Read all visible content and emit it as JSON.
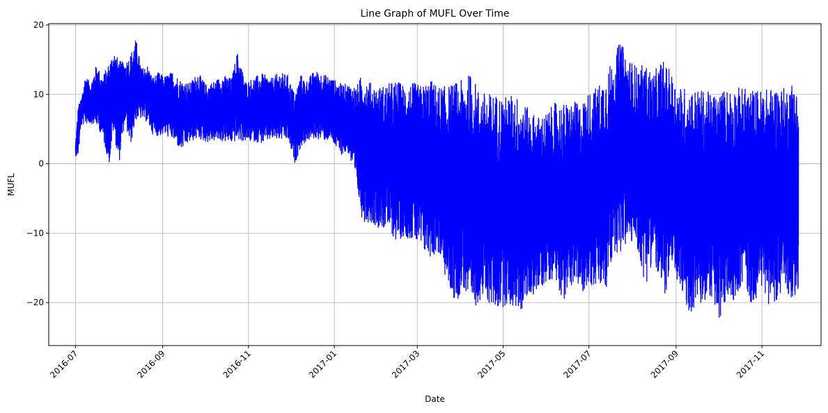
{
  "chart_data": {
    "type": "line",
    "title": "Line Graph of MUFL Over Time",
    "xlabel": "Date",
    "ylabel": "MUFL",
    "grid": true,
    "legend": "none",
    "xlim": [
      "2016-06-12",
      "2017-12-13"
    ],
    "ylim": [
      -26.2,
      20.2
    ],
    "x_ticks": [
      "2016-07",
      "2016-09",
      "2016-11",
      "2017-01",
      "2017-03",
      "2017-05",
      "2017-07",
      "2017-09",
      "2017-11"
    ],
    "y_ticks": [
      20,
      10,
      0,
      -10,
      -20
    ],
    "series": [
      {
        "color": "#0000ff",
        "x_start": "2016-07-01",
        "x_end": "2017-11-27",
        "envelope_note_free": true,
        "x": [
          "2016-07-01",
          "2016-07-03",
          "2016-07-05",
          "2016-07-08",
          "2016-07-12",
          "2016-07-16",
          "2016-07-20",
          "2016-07-25",
          "2016-07-28",
          "2016-08-01",
          "2016-08-05",
          "2016-08-09",
          "2016-08-13",
          "2016-08-17",
          "2016-08-21",
          "2016-08-25",
          "2016-08-29",
          "2016-09-02",
          "2016-09-08",
          "2016-09-14",
          "2016-09-20",
          "2016-09-26",
          "2016-10-02",
          "2016-10-08",
          "2016-10-14",
          "2016-10-20",
          "2016-10-24",
          "2016-10-30",
          "2016-11-05",
          "2016-11-11",
          "2016-11-17",
          "2016-11-23",
          "2016-11-29",
          "2016-12-04",
          "2016-12-08",
          "2016-12-12",
          "2016-12-18",
          "2016-12-24",
          "2016-12-30",
          "2017-01-05",
          "2017-01-11",
          "2017-01-17",
          "2017-01-21",
          "2017-01-27",
          "2017-02-02",
          "2017-02-08",
          "2017-02-14",
          "2017-02-20",
          "2017-02-26",
          "2017-03-04",
          "2017-03-10",
          "2017-03-16",
          "2017-03-22",
          "2017-03-28",
          "2017-04-03",
          "2017-04-08",
          "2017-04-14",
          "2017-04-20",
          "2017-04-26",
          "2017-05-02",
          "2017-05-08",
          "2017-05-14",
          "2017-05-20",
          "2017-05-26",
          "2017-06-01",
          "2017-06-07",
          "2017-06-13",
          "2017-06-19",
          "2017-06-25",
          "2017-07-01",
          "2017-07-07",
          "2017-07-13",
          "2017-07-19",
          "2017-07-23",
          "2017-07-29",
          "2017-08-04",
          "2017-08-10",
          "2017-08-16",
          "2017-08-22",
          "2017-08-28",
          "2017-09-03",
          "2017-09-09",
          "2017-09-15",
          "2017-09-21",
          "2017-09-27",
          "2017-10-01",
          "2017-10-07",
          "2017-10-13",
          "2017-10-19",
          "2017-10-25",
          "2017-10-31",
          "2017-11-06",
          "2017-11-12",
          "2017-11-18",
          "2017-11-24",
          "2017-11-27"
        ],
        "max": [
          2.8,
          8.6,
          9.2,
          12.7,
          11.6,
          14.4,
          12.5,
          14.7,
          16.5,
          14.9,
          14.6,
          15.8,
          18.0,
          13.7,
          14.3,
          12.5,
          13.2,
          12.6,
          13.3,
          12.1,
          11.6,
          13.2,
          11.4,
          12.0,
          12.8,
          12.3,
          16.2,
          11.8,
          12.5,
          13.0,
          12.3,
          13.2,
          12.8,
          10.0,
          12.9,
          11.9,
          13.5,
          13.0,
          12.4,
          11.6,
          11.5,
          11.2,
          13.2,
          11.7,
          11.1,
          11.6,
          12.0,
          11.5,
          11.7,
          11.3,
          12.2,
          11.2,
          11.2,
          11.8,
          12.1,
          13.2,
          10.5,
          10.2,
          10.1,
          9.7,
          10.1,
          9.4,
          7.6,
          6.9,
          7.4,
          8.8,
          8.7,
          9.0,
          8.7,
          10.4,
          11.2,
          13.3,
          15.3,
          17.8,
          15.3,
          14.1,
          14.3,
          13.1,
          15.2,
          13.3,
          11.2,
          11.0,
          10.8,
          10.6,
          10.1,
          10.4,
          10.9,
          11.1,
          11.0,
          10.8,
          10.7,
          10.9,
          11.2,
          10.9,
          12.3,
          9.1
        ],
        "min": [
          1.1,
          1.2,
          5.5,
          5.8,
          5.8,
          5.6,
          4.0,
          0.0,
          4.8,
          0.0,
          6.0,
          2.5,
          6.3,
          6.5,
          6.0,
          4.2,
          4.0,
          4.2,
          3.5,
          1.9,
          3.1,
          3.6,
          3.1,
          3.3,
          3.2,
          3.0,
          3.3,
          3.2,
          3.2,
          2.9,
          3.5,
          3.4,
          3.4,
          0.0,
          2.3,
          3.2,
          3.6,
          3.4,
          3.3,
          1.3,
          1.5,
          -3.5,
          -8.3,
          -8.5,
          -9.3,
          -9.5,
          -11.2,
          -10.5,
          -11.0,
          -12.8,
          -13.5,
          -13.0,
          -17.3,
          -20.2,
          -18.0,
          -22.1,
          -19.6,
          -20.1,
          -21.2,
          -20.5,
          -20.8,
          -21.3,
          -19.0,
          -18.6,
          -17.0,
          -16.4,
          -20.0,
          -17.3,
          -18.8,
          -17.6,
          -17.9,
          -18.8,
          -12.5,
          -13.2,
          -11.3,
          -12.0,
          -17.8,
          -13.4,
          -20.1,
          -16.4,
          -17.4,
          -22.1,
          -20.6,
          -20.4,
          -19.0,
          -24.0,
          -19.5,
          -19.6,
          -16.9,
          -20.9,
          -17.6,
          -20.3,
          -19.6,
          -18.7,
          -19.6,
          -18.5
        ]
      }
    ]
  }
}
